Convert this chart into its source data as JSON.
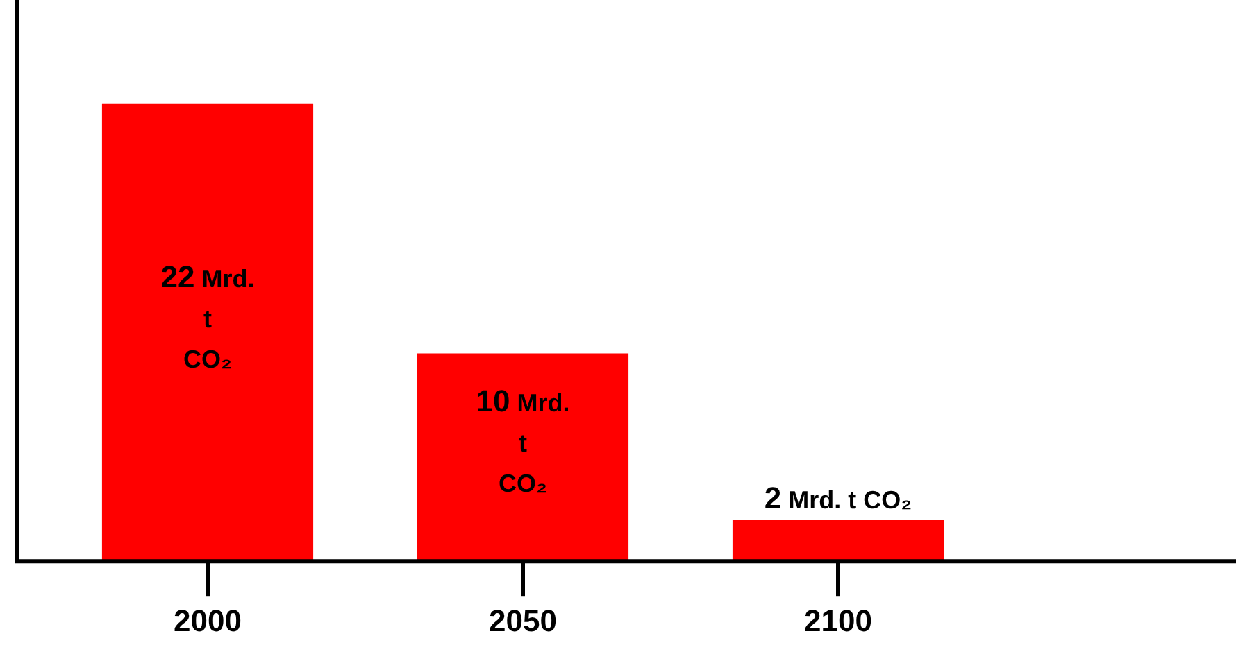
{
  "chart_data": {
    "type": "bar",
    "categories": [
      "2000",
      "2050",
      "2100"
    ],
    "values": [
      22,
      10,
      2
    ],
    "color": "#ff0000",
    "value_labels": [
      "22 Mrd. t CO₂",
      "10 Mrd. t CO₂",
      "2 Mrd. t CO₂"
    ],
    "ylim": [
      0,
      27
    ],
    "tick_labels": "x",
    "grid": false,
    "legend": false
  }
}
